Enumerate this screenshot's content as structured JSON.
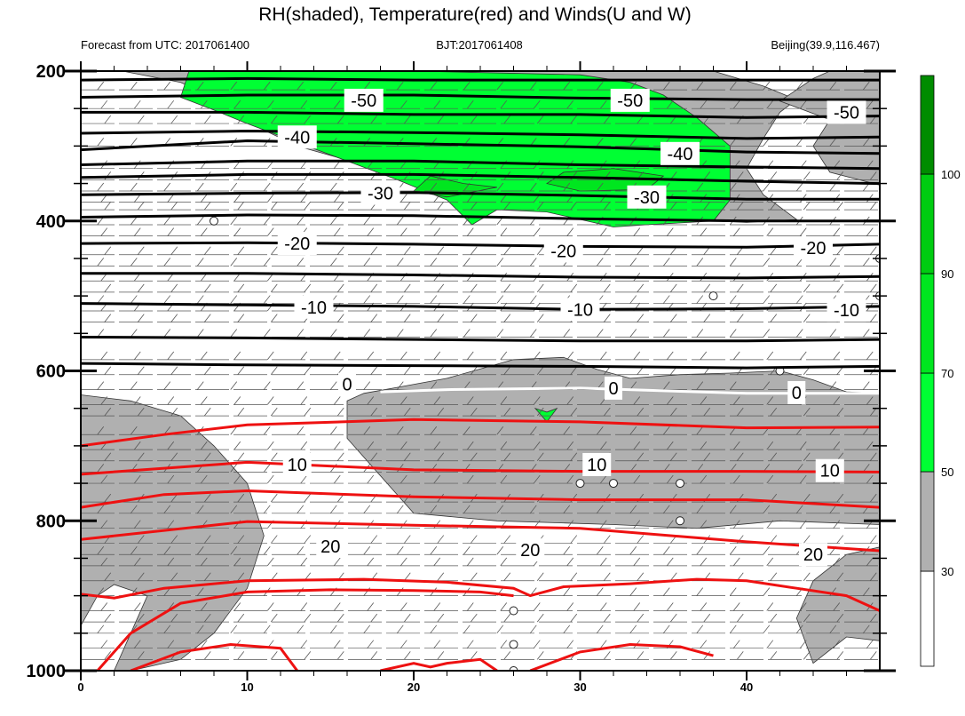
{
  "title": "RH(shaded), Temperature(red) and Winds(U and W)",
  "subtitle_left": "Forecast from UTC: 2017061400",
  "subtitle_center": "BJT:2017061408",
  "subtitle_right": "Beijing(39.9,116.467)",
  "colors": {
    "rh_30_50": "#b0b0b0",
    "rh_50_70": "#00ff33",
    "rh_70_90": "#00e61f",
    "rh_90_100": "#00cc11",
    "rh_100": "#008c00",
    "temp_warm": "#ee1111",
    "temp_cold": "#000000",
    "temp_zero": "#ffffff"
  },
  "chart_data": {
    "type": "contour",
    "title": "RH(shaded), Temperature(red) and Winds(U and W)",
    "xlabel": "",
    "ylabel": "",
    "xlim": [
      0,
      48
    ],
    "ylim": [
      1000,
      200
    ],
    "x_ticks": [
      "0",
      "10",
      "20",
      "30",
      "40"
    ],
    "x_tick_values": [
      0,
      10,
      20,
      30,
      40
    ],
    "y_ticks": [
      "200",
      "400",
      "600",
      "800",
      "1000"
    ],
    "y_tick_values": [
      200,
      400,
      600,
      800,
      1000
    ],
    "colorbar": {
      "levels": [
        "30",
        "50",
        "70",
        "90",
        "100"
      ],
      "level_values": [
        30,
        50,
        70,
        90,
        100
      ],
      "colors": [
        "#ffffff",
        "#b0b0b0",
        "#00ff33",
        "#00e61f",
        "#00cc11",
        "#008c00"
      ]
    },
    "temperature_contours": [
      {
        "level": -50,
        "label": "-50",
        "points": [
          [
            0,
            235
          ],
          [
            10,
            232
          ],
          [
            20,
            232
          ],
          [
            30,
            236
          ],
          [
            40,
            238
          ],
          [
            48,
            238
          ]
        ],
        "labels_at": [
          [
            17,
            239
          ],
          [
            33,
            239
          ],
          [
            46,
            255
          ]
        ]
      },
      {
        "level": -40,
        "label": "-40",
        "points": [
          [
            0,
            305
          ],
          [
            10,
            293
          ],
          [
            20,
            297
          ],
          [
            30,
            301
          ],
          [
            40,
            308
          ],
          [
            48,
            310
          ]
        ],
        "labels_at": [
          [
            13,
            288
          ],
          [
            36,
            310
          ]
        ]
      },
      {
        "level": -30,
        "label": "-30",
        "points": [
          [
            0,
            365
          ],
          [
            10,
            363
          ],
          [
            20,
            362
          ],
          [
            30,
            366
          ],
          [
            40,
            371
          ],
          [
            48,
            371
          ]
        ],
        "labels_at": [
          [
            18,
            363
          ],
          [
            34,
            368
          ]
        ]
      },
      {
        "level": -20,
        "label": "-20",
        "points": [
          [
            0,
            430
          ],
          [
            10,
            429
          ],
          [
            20,
            431
          ],
          [
            30,
            434
          ],
          [
            40,
            435
          ],
          [
            48,
            431
          ]
        ],
        "labels_at": [
          [
            13,
            430
          ],
          [
            29,
            440
          ],
          [
            44,
            436
          ]
        ]
      },
      {
        "level": -10,
        "label": "-10",
        "points": [
          [
            0,
            510
          ],
          [
            10,
            512
          ],
          [
            20,
            514
          ],
          [
            30,
            518
          ],
          [
            40,
            517
          ],
          [
            48,
            514
          ]
        ],
        "labels_at": [
          [
            14,
            515
          ],
          [
            30,
            518
          ],
          [
            46,
            519
          ]
        ]
      },
      {
        "level": 0,
        "label": "0",
        "points": [
          [
            18,
            628
          ],
          [
            22,
            625
          ],
          [
            30,
            623
          ],
          [
            40,
            630
          ],
          [
            48,
            630
          ]
        ],
        "labels_at": [
          [
            16,
            618
          ],
          [
            32,
            623
          ],
          [
            43,
            629
          ]
        ]
      },
      {
        "level": 10,
        "label": "10",
        "points": [
          [
            0,
            738
          ],
          [
            10,
            722
          ],
          [
            20,
            732
          ],
          [
            30,
            734
          ],
          [
            40,
            734
          ],
          [
            48,
            735
          ]
        ],
        "labels_at": [
          [
            13,
            725
          ],
          [
            31,
            725
          ],
          [
            45,
            733
          ]
        ]
      },
      {
        "level": 20,
        "label": "20",
        "points": [
          [
            0,
            825
          ],
          [
            10,
            801
          ],
          [
            20,
            806
          ],
          [
            30,
            810
          ],
          [
            40,
            828
          ],
          [
            48,
            840
          ]
        ],
        "labels_at": [
          [
            15,
            834
          ],
          [
            27,
            839
          ],
          [
            44,
            845
          ]
        ]
      }
    ],
    "rh_regions": [
      {
        "level": "30-50",
        "description": "upper-level moist layer near 200-430 hPa"
      },
      {
        "level": "30-50",
        "description": "mid-level layer near 580-810 hPa, x 16-48"
      },
      {
        "level": "30-50",
        "description": "lower-left boundary layer, x 0-10, 630-1000 hPa"
      },
      {
        "level": "30-50",
        "description": "lower-right region, x 43-48, 850-960 hPa"
      },
      {
        "level": "50-70",
        "description": "upper-level core, x 6-39, 210-410 hPa"
      },
      {
        "level": "70-90",
        "description": "small patches near 330-350 hPa"
      }
    ]
  }
}
